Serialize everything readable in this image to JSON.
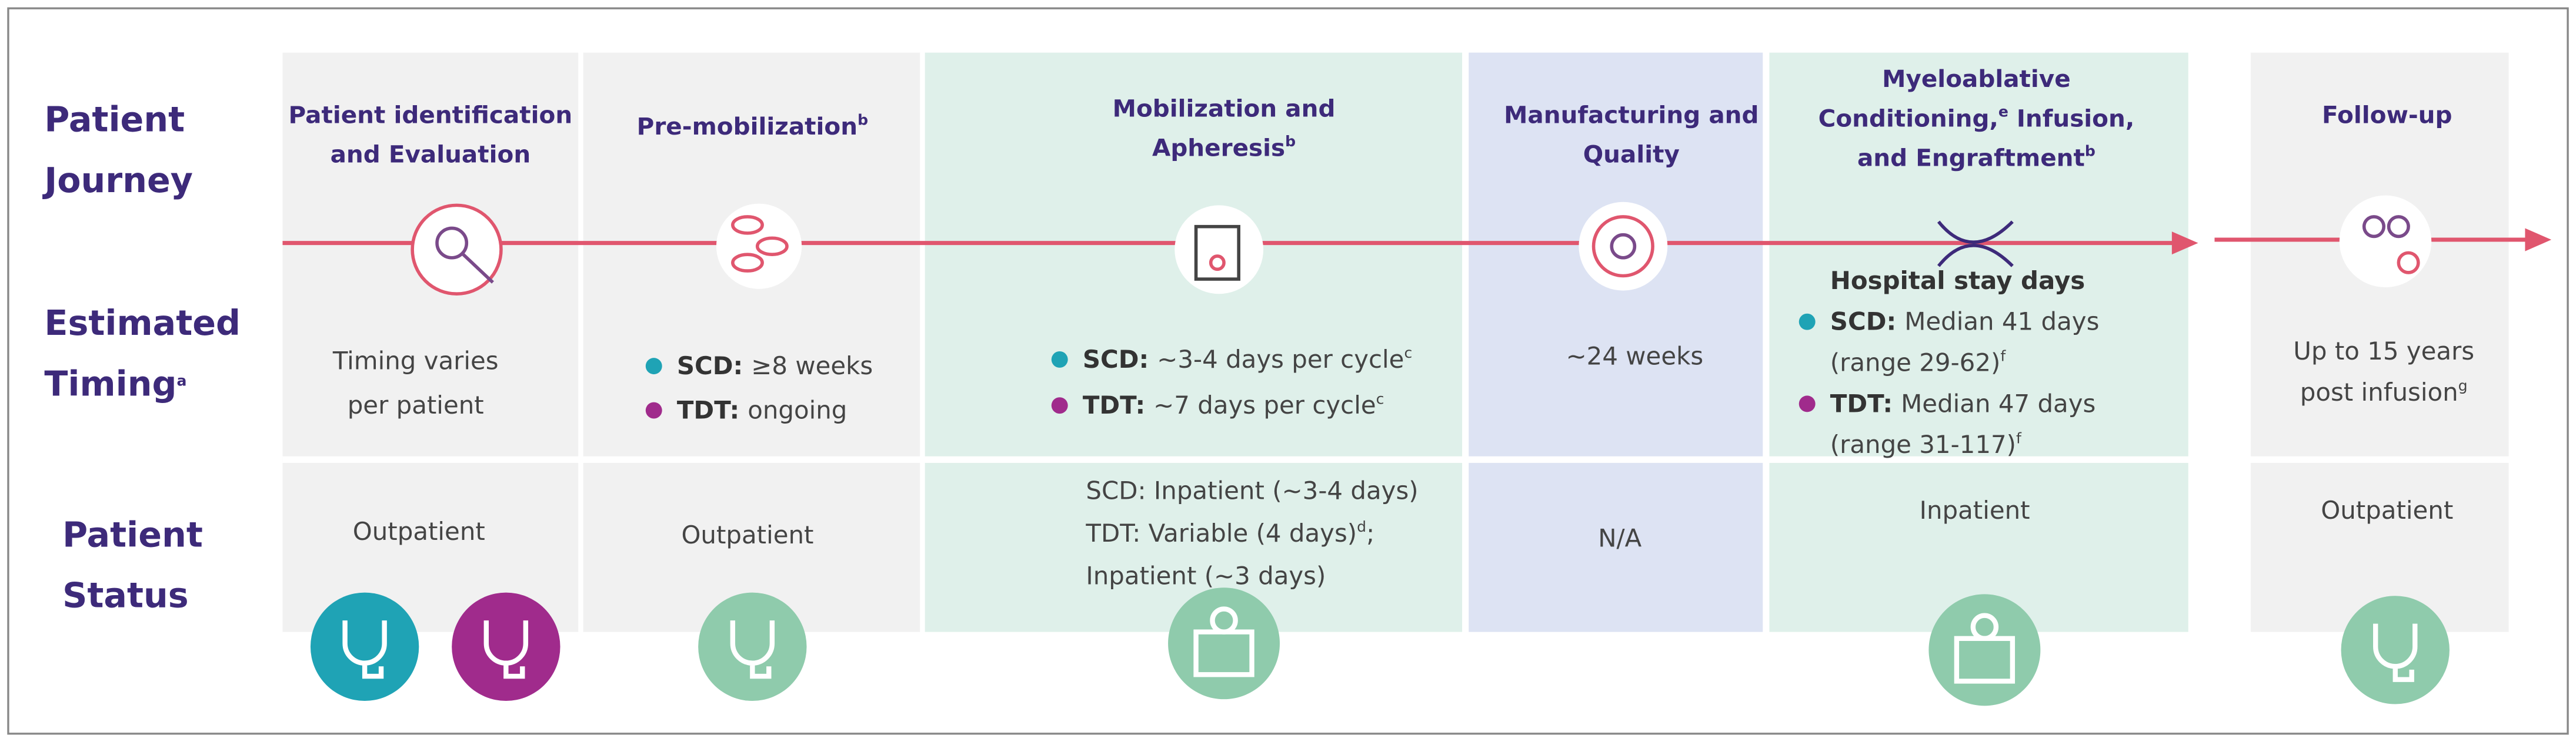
{
  "row_labels": [
    [
      {
        "segs": [
          {
            "text": "Patient"
          }
        ]
      },
      {
        "segs": [
          {
            "text": "Journey"
          }
        ]
      }
    ],
    [
      {
        "segs": [
          {
            "text": "Estimated"
          }
        ]
      },
      {
        "segs": [
          {
            "text": "Timing"
          },
          {
            "sup": "a"
          }
        ]
      }
    ],
    [
      {
        "segs": [
          {
            "text": "Patient"
          }
        ]
      },
      {
        "segs": [
          {
            "text": "Status"
          }
        ]
      }
    ]
  ],
  "columns": [
    {
      "title": [
        {
          "segs": [
            {
              "text": "Patient identification"
            }
          ]
        },
        {
          "segs": [
            {
              "text": "and Evaluation"
            }
          ]
        }
      ],
      "timing": [
        {
          "segs": [
            {
              "text": "Timing varies"
            }
          ]
        },
        {
          "segs": [
            {
              "text": "per patient"
            }
          ]
        }
      ],
      "status": [
        {
          "segs": [
            {
              "text": "Outpatient"
            }
          ]
        }
      ]
    },
    {
      "title": [
        {
          "segs": [
            {
              "text": "Pre-mobilization"
            },
            {
              "sup": "b"
            }
          ]
        }
      ],
      "timing": [
        {
          "dot": "#1fa3b5",
          "segs": [
            {
              "b": "SCD:"
            },
            {
              "text": "≥8 weeks"
            }
          ]
        },
        {
          "dot": "#a02b8c",
          "segs": [
            {
              "b": "TDT:"
            },
            {
              "text": "ongoing"
            }
          ]
        }
      ],
      "status": [
        {
          "segs": [
            {
              "text": "Outpatient"
            }
          ]
        }
      ]
    },
    {
      "title": [
        {
          "segs": [
            {
              "text": "Mobilization and"
            }
          ]
        },
        {
          "segs": [
            {
              "text": "Apheresis"
            },
            {
              "sup": "b"
            }
          ]
        }
      ],
      "timing": [
        {
          "dot": "#1fa3b5",
          "segs": [
            {
              "b": "SCD:"
            },
            {
              "text": "~3-4 days per cycle"
            },
            {
              "sup": "c"
            }
          ]
        },
        {
          "dot": "#a02b8c",
          "segs": [
            {
              "b": "TDT:"
            },
            {
              "text": "~7 days per cycle"
            },
            {
              "sup": "c"
            }
          ]
        }
      ],
      "status": [
        {
          "segs": [
            {
              "text": "SCD: Inpatient (~3-4 days)"
            }
          ]
        },
        {
          "segs": [
            {
              "text": "TDT: Variable (4 days)"
            },
            {
              "sup": "d"
            },
            {
              "text": ";"
            }
          ]
        },
        {
          "segs": [
            {
              "text": "Inpatient (~3 days)"
            }
          ]
        }
      ]
    },
    {
      "title": [
        {
          "segs": [
            {
              "text": "Manufacturing and"
            }
          ]
        },
        {
          "segs": [
            {
              "text": "Quality"
            }
          ]
        }
      ],
      "timing": [
        {
          "segs": [
            {
              "text": "~24 weeks"
            }
          ]
        }
      ],
      "status": [
        {
          "segs": [
            {
              "text": "N/A"
            }
          ]
        }
      ]
    },
    {
      "title": [
        {
          "segs": [
            {
              "text": "Myeloablative"
            }
          ]
        },
        {
          "segs": [
            {
              "text": "Conditioning,"
            },
            {
              "sup": "e"
            },
            {
              "text": "Infusion,"
            }
          ]
        },
        {
          "segs": [
            {
              "text": "and Engraftment"
            },
            {
              "sup": "b"
            }
          ]
        }
      ],
      "timing": [
        {
          "segs": [
            {
              "b": "Hospital stay days"
            }
          ]
        },
        {
          "dot": "#1fa3b5",
          "segs": [
            {
              "b": "SCD:"
            },
            {
              "text": "Median 41 days"
            }
          ]
        },
        {
          "segs": [
            {
              "text": "(range 29-62)"
            },
            {
              "sup": "f"
            }
          ]
        },
        {
          "dot": "#a02b8c",
          "segs": [
            {
              "b": "TDT:"
            },
            {
              "text": "Median 47 days"
            }
          ]
        },
        {
          "segs": [
            {
              "text": "(range 31-117)"
            },
            {
              "sup": "f"
            }
          ]
        }
      ],
      "status": [
        {
          "segs": [
            {
              "text": "Inpatient"
            }
          ]
        }
      ]
    },
    {
      "title": [
        {
          "segs": [
            {
              "text": "Follow-up"
            }
          ]
        }
      ],
      "timing": [
        {
          "segs": [
            {
              "text": "Up to 15 years"
            }
          ]
        },
        {
          "segs": [
            {
              "text": "post infusion"
            },
            {
              "sup": "g"
            }
          ]
        }
      ],
      "status": [
        {
          "segs": [
            {
              "text": "Outpatient"
            }
          ]
        }
      ]
    }
  ]
}
